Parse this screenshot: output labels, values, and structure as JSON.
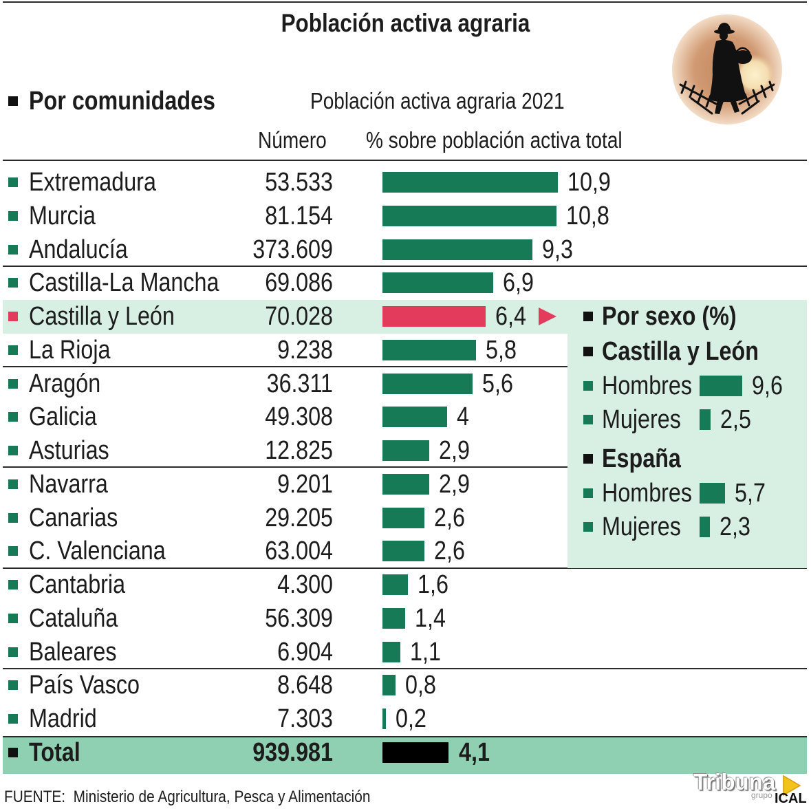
{
  "title": "Población activa agraria",
  "source": "FUENTE:  Ministerio de Agricultura, Pesca y Alimentación",
  "logo": {
    "brand": "Tribuna",
    "group": "grupo",
    "agency": "ICAL"
  },
  "icons": {
    "illustration": "farmer-icon",
    "highlight_marker": "triangle-right-icon",
    "logo_mark": "play-triangle-icon",
    "bullet": "square-bullet-icon"
  },
  "colors": {
    "bar": "#177a57",
    "highlight": "#e23b5b",
    "total_bar": "#000000",
    "highlight_bg": "#d8efe4",
    "total_bg": "#8fd0b2",
    "heading_bullet": "#111111",
    "rule": "#2a2a2a",
    "logo_mark": "#f3c21b"
  },
  "chart_data": [
    {
      "type": "bar",
      "orientation": "horizontal",
      "section": "Por comunidades",
      "title": "Población activa agraria 2021",
      "number_header": "Número",
      "value_header": "% sobre población activa total",
      "categories": [
        "Extremadura",
        "Murcia",
        "Andalucía",
        "Castilla-La Mancha",
        "Castilla y León",
        "La Rioja",
        "Aragón",
        "Galicia",
        "Asturias",
        "Navarra",
        "Canarias",
        "C. Valenciana",
        "Cantabria",
        "Cataluña",
        "Baleares",
        "País Vasco",
        "Madrid"
      ],
      "numbers": [
        "53.533",
        "81.154",
        "373.609",
        "69.086",
        "70.028",
        "9.238",
        "36.311",
        "49.308",
        "12.825",
        "9.201",
        "29.205",
        "63.004",
        "4.300",
        "56.309",
        "6.904",
        "8.648",
        "7.303"
      ],
      "values": [
        10.9,
        10.8,
        9.3,
        6.9,
        6.4,
        5.8,
        5.6,
        4,
        2.9,
        2.9,
        2.6,
        2.6,
        1.6,
        1.4,
        1.1,
        0.8,
        0.2
      ],
      "value_labels": [
        "10,9",
        "10,8",
        "9,3",
        "6,9",
        "6,4",
        "5,8",
        "5,6",
        "4",
        "2,9",
        "2,9",
        "2,6",
        "2,6",
        "1,6",
        "1,4",
        "1,1",
        "0,8",
        "0,2"
      ],
      "highlight_index": 4,
      "total": {
        "label": "Total",
        "number": "939.981",
        "value": 4.1,
        "value_label": "4,1"
      }
    },
    {
      "type": "bar",
      "orientation": "horizontal",
      "title": "Por sexo (%)",
      "groups": [
        {
          "name": "Castilla y León",
          "items": [
            {
              "label": "Hombres",
              "value": 9.6,
              "value_label": "9,6"
            },
            {
              "label": "Mujeres",
              "value": 2.5,
              "value_label": "2,5"
            }
          ]
        },
        {
          "name": "España",
          "items": [
            {
              "label": "Hombres",
              "value": 5.7,
              "value_label": "5,7"
            },
            {
              "label": "Mujeres",
              "value": 2.3,
              "value_label": "2,3"
            }
          ]
        }
      ]
    }
  ]
}
